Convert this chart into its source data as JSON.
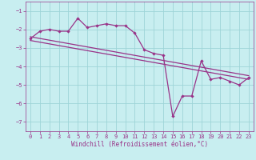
{
  "xlabel": "Windchill (Refroidissement éolien,°C)",
  "bg_color": "#c8eef0",
  "grid_color": "#9dd4d8",
  "line_color": "#993388",
  "xlim": [
    -0.5,
    23.5
  ],
  "ylim": [
    -7.5,
    -0.5
  ],
  "xticks": [
    0,
    1,
    2,
    3,
    4,
    5,
    6,
    7,
    8,
    9,
    10,
    11,
    12,
    13,
    14,
    15,
    16,
    17,
    18,
    19,
    20,
    21,
    22,
    23
  ],
  "yticks": [
    -7,
    -6,
    -5,
    -4,
    -3,
    -2,
    -1
  ],
  "series1_x": [
    0,
    1,
    2,
    3,
    4,
    5,
    6,
    7,
    8,
    9,
    10,
    11,
    12,
    13,
    14,
    15,
    16,
    17,
    18,
    19,
    20,
    21,
    22,
    23
  ],
  "series1_y": [
    -2.5,
    -2.1,
    -2.0,
    -2.1,
    -2.1,
    -1.4,
    -1.9,
    -1.8,
    -1.7,
    -1.8,
    -1.8,
    -2.2,
    -3.1,
    -3.3,
    -3.4,
    -6.7,
    -5.6,
    -5.6,
    -3.7,
    -4.7,
    -4.6,
    -4.8,
    -5.0,
    -4.6
  ],
  "series2_x": [
    0,
    23
  ],
  "series2_y": [
    -2.4,
    -4.5
  ],
  "series3_x": [
    0,
    23
  ],
  "series3_y": [
    -2.6,
    -4.7
  ]
}
